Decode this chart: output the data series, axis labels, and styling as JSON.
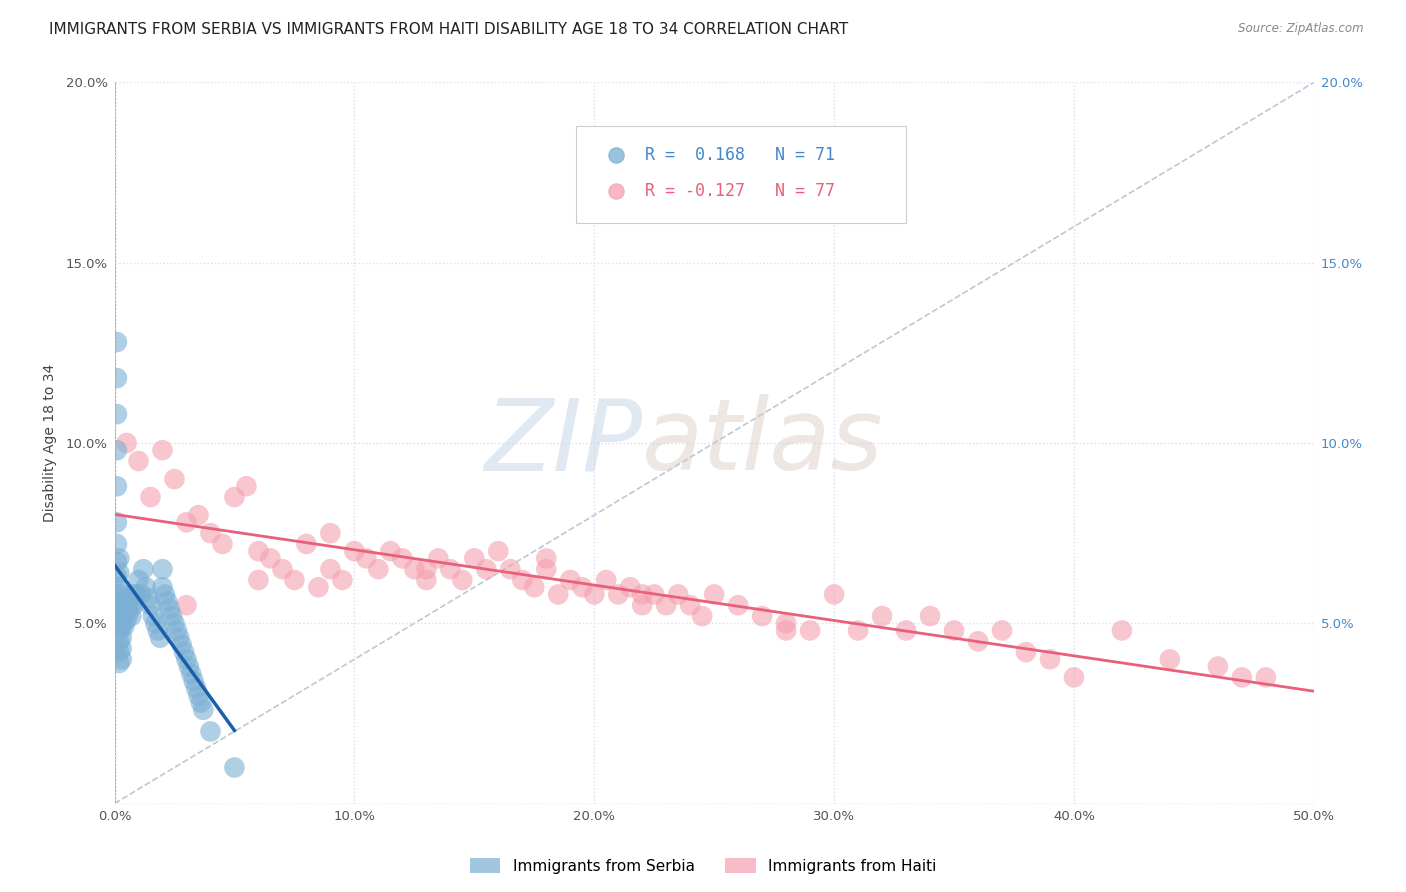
{
  "title": "IMMIGRANTS FROM SERBIA VS IMMIGRANTS FROM HAITI DISABILITY AGE 18 TO 34 CORRELATION CHART",
  "source": "Source: ZipAtlas.com",
  "ylabel": "Disability Age 18 to 34",
  "xlim": [
    0.0,
    0.5
  ],
  "ylim": [
    0.0,
    0.2
  ],
  "xticks": [
    0.0,
    0.1,
    0.2,
    0.3,
    0.4,
    0.5
  ],
  "yticks": [
    0.0,
    0.05,
    0.1,
    0.15,
    0.2
  ],
  "xticklabels": [
    "0.0%",
    "10.0%",
    "20.0%",
    "30.0%",
    "40.0%",
    "50.0%"
  ],
  "yticklabels_left": [
    "",
    "5.0%",
    "10.0%",
    "15.0%",
    "20.0%"
  ],
  "yticklabels_right": [
    "",
    "5.0%",
    "10.0%",
    "15.0%",
    "20.0%"
  ],
  "serbia_R": 0.168,
  "serbia_N": 71,
  "haiti_R": -0.127,
  "haiti_N": 77,
  "serbia_color": "#7BAFD4",
  "haiti_color": "#F4A0B0",
  "serbia_line_color": "#1A5FAB",
  "haiti_line_color": "#E8607A",
  "serbia_alpha": 0.6,
  "haiti_alpha": 0.6,
  "legend_label_serbia": "Immigrants from Serbia",
  "legend_label_haiti": "Immigrants from Haiti",
  "serbia_x": [
    0.001,
    0.001,
    0.001,
    0.001,
    0.001,
    0.001,
    0.001,
    0.001,
    0.001,
    0.001,
    0.002,
    0.002,
    0.002,
    0.002,
    0.002,
    0.002,
    0.002,
    0.002,
    0.002,
    0.002,
    0.003,
    0.003,
    0.003,
    0.003,
    0.003,
    0.003,
    0.003,
    0.004,
    0.004,
    0.004,
    0.005,
    0.005,
    0.005,
    0.006,
    0.006,
    0.007,
    0.007,
    0.008,
    0.008,
    0.009,
    0.01,
    0.011,
    0.012,
    0.013,
    0.014,
    0.015,
    0.016,
    0.017,
    0.018,
    0.019,
    0.02,
    0.02,
    0.021,
    0.022,
    0.023,
    0.024,
    0.025,
    0.026,
    0.027,
    0.028,
    0.029,
    0.03,
    0.031,
    0.032,
    0.033,
    0.034,
    0.035,
    0.036,
    0.037,
    0.04,
    0.05
  ],
  "serbia_y": [
    0.128,
    0.118,
    0.108,
    0.098,
    0.088,
    0.078,
    0.072,
    0.067,
    0.063,
    0.058,
    0.068,
    0.064,
    0.06,
    0.056,
    0.053,
    0.05,
    0.048,
    0.045,
    0.042,
    0.039,
    0.058,
    0.055,
    0.052,
    0.049,
    0.046,
    0.043,
    0.04,
    0.055,
    0.052,
    0.049,
    0.057,
    0.054,
    0.051,
    0.056,
    0.053,
    0.055,
    0.052,
    0.058,
    0.055,
    0.058,
    0.062,
    0.058,
    0.065,
    0.06,
    0.057,
    0.055,
    0.052,
    0.05,
    0.048,
    0.046,
    0.065,
    0.06,
    0.058,
    0.056,
    0.054,
    0.052,
    0.05,
    0.048,
    0.046,
    0.044,
    0.042,
    0.04,
    0.038,
    0.036,
    0.034,
    0.032,
    0.03,
    0.028,
    0.026,
    0.02,
    0.01
  ],
  "haiti_x": [
    0.005,
    0.01,
    0.015,
    0.02,
    0.025,
    0.03,
    0.035,
    0.04,
    0.045,
    0.05,
    0.055,
    0.06,
    0.065,
    0.07,
    0.075,
    0.08,
    0.085,
    0.09,
    0.095,
    0.1,
    0.105,
    0.11,
    0.115,
    0.12,
    0.125,
    0.13,
    0.135,
    0.14,
    0.145,
    0.15,
    0.155,
    0.16,
    0.165,
    0.17,
    0.175,
    0.18,
    0.185,
    0.19,
    0.195,
    0.2,
    0.205,
    0.21,
    0.215,
    0.22,
    0.225,
    0.23,
    0.235,
    0.24,
    0.245,
    0.25,
    0.26,
    0.27,
    0.28,
    0.29,
    0.3,
    0.31,
    0.32,
    0.33,
    0.34,
    0.35,
    0.36,
    0.37,
    0.38,
    0.39,
    0.4,
    0.42,
    0.44,
    0.46,
    0.47,
    0.48,
    0.03,
    0.06,
    0.09,
    0.13,
    0.18,
    0.22,
    0.28
  ],
  "haiti_y": [
    0.1,
    0.095,
    0.085,
    0.098,
    0.09,
    0.078,
    0.08,
    0.075,
    0.072,
    0.085,
    0.088,
    0.07,
    0.068,
    0.065,
    0.062,
    0.072,
    0.06,
    0.065,
    0.062,
    0.07,
    0.068,
    0.065,
    0.07,
    0.068,
    0.065,
    0.062,
    0.068,
    0.065,
    0.062,
    0.068,
    0.065,
    0.07,
    0.065,
    0.062,
    0.06,
    0.065,
    0.058,
    0.062,
    0.06,
    0.058,
    0.062,
    0.058,
    0.06,
    0.055,
    0.058,
    0.055,
    0.058,
    0.055,
    0.052,
    0.058,
    0.055,
    0.052,
    0.05,
    0.048,
    0.058,
    0.048,
    0.052,
    0.048,
    0.052,
    0.048,
    0.045,
    0.048,
    0.042,
    0.04,
    0.035,
    0.048,
    0.04,
    0.038,
    0.035,
    0.035,
    0.055,
    0.062,
    0.075,
    0.065,
    0.068,
    0.058,
    0.048
  ],
  "background_color": "#FFFFFF",
  "grid_color": "#DDDDEE",
  "title_fontsize": 11,
  "axis_label_fontsize": 10,
  "tick_fontsize": 9.5,
  "legend_fontsize": 11,
  "marker_size": 220
}
